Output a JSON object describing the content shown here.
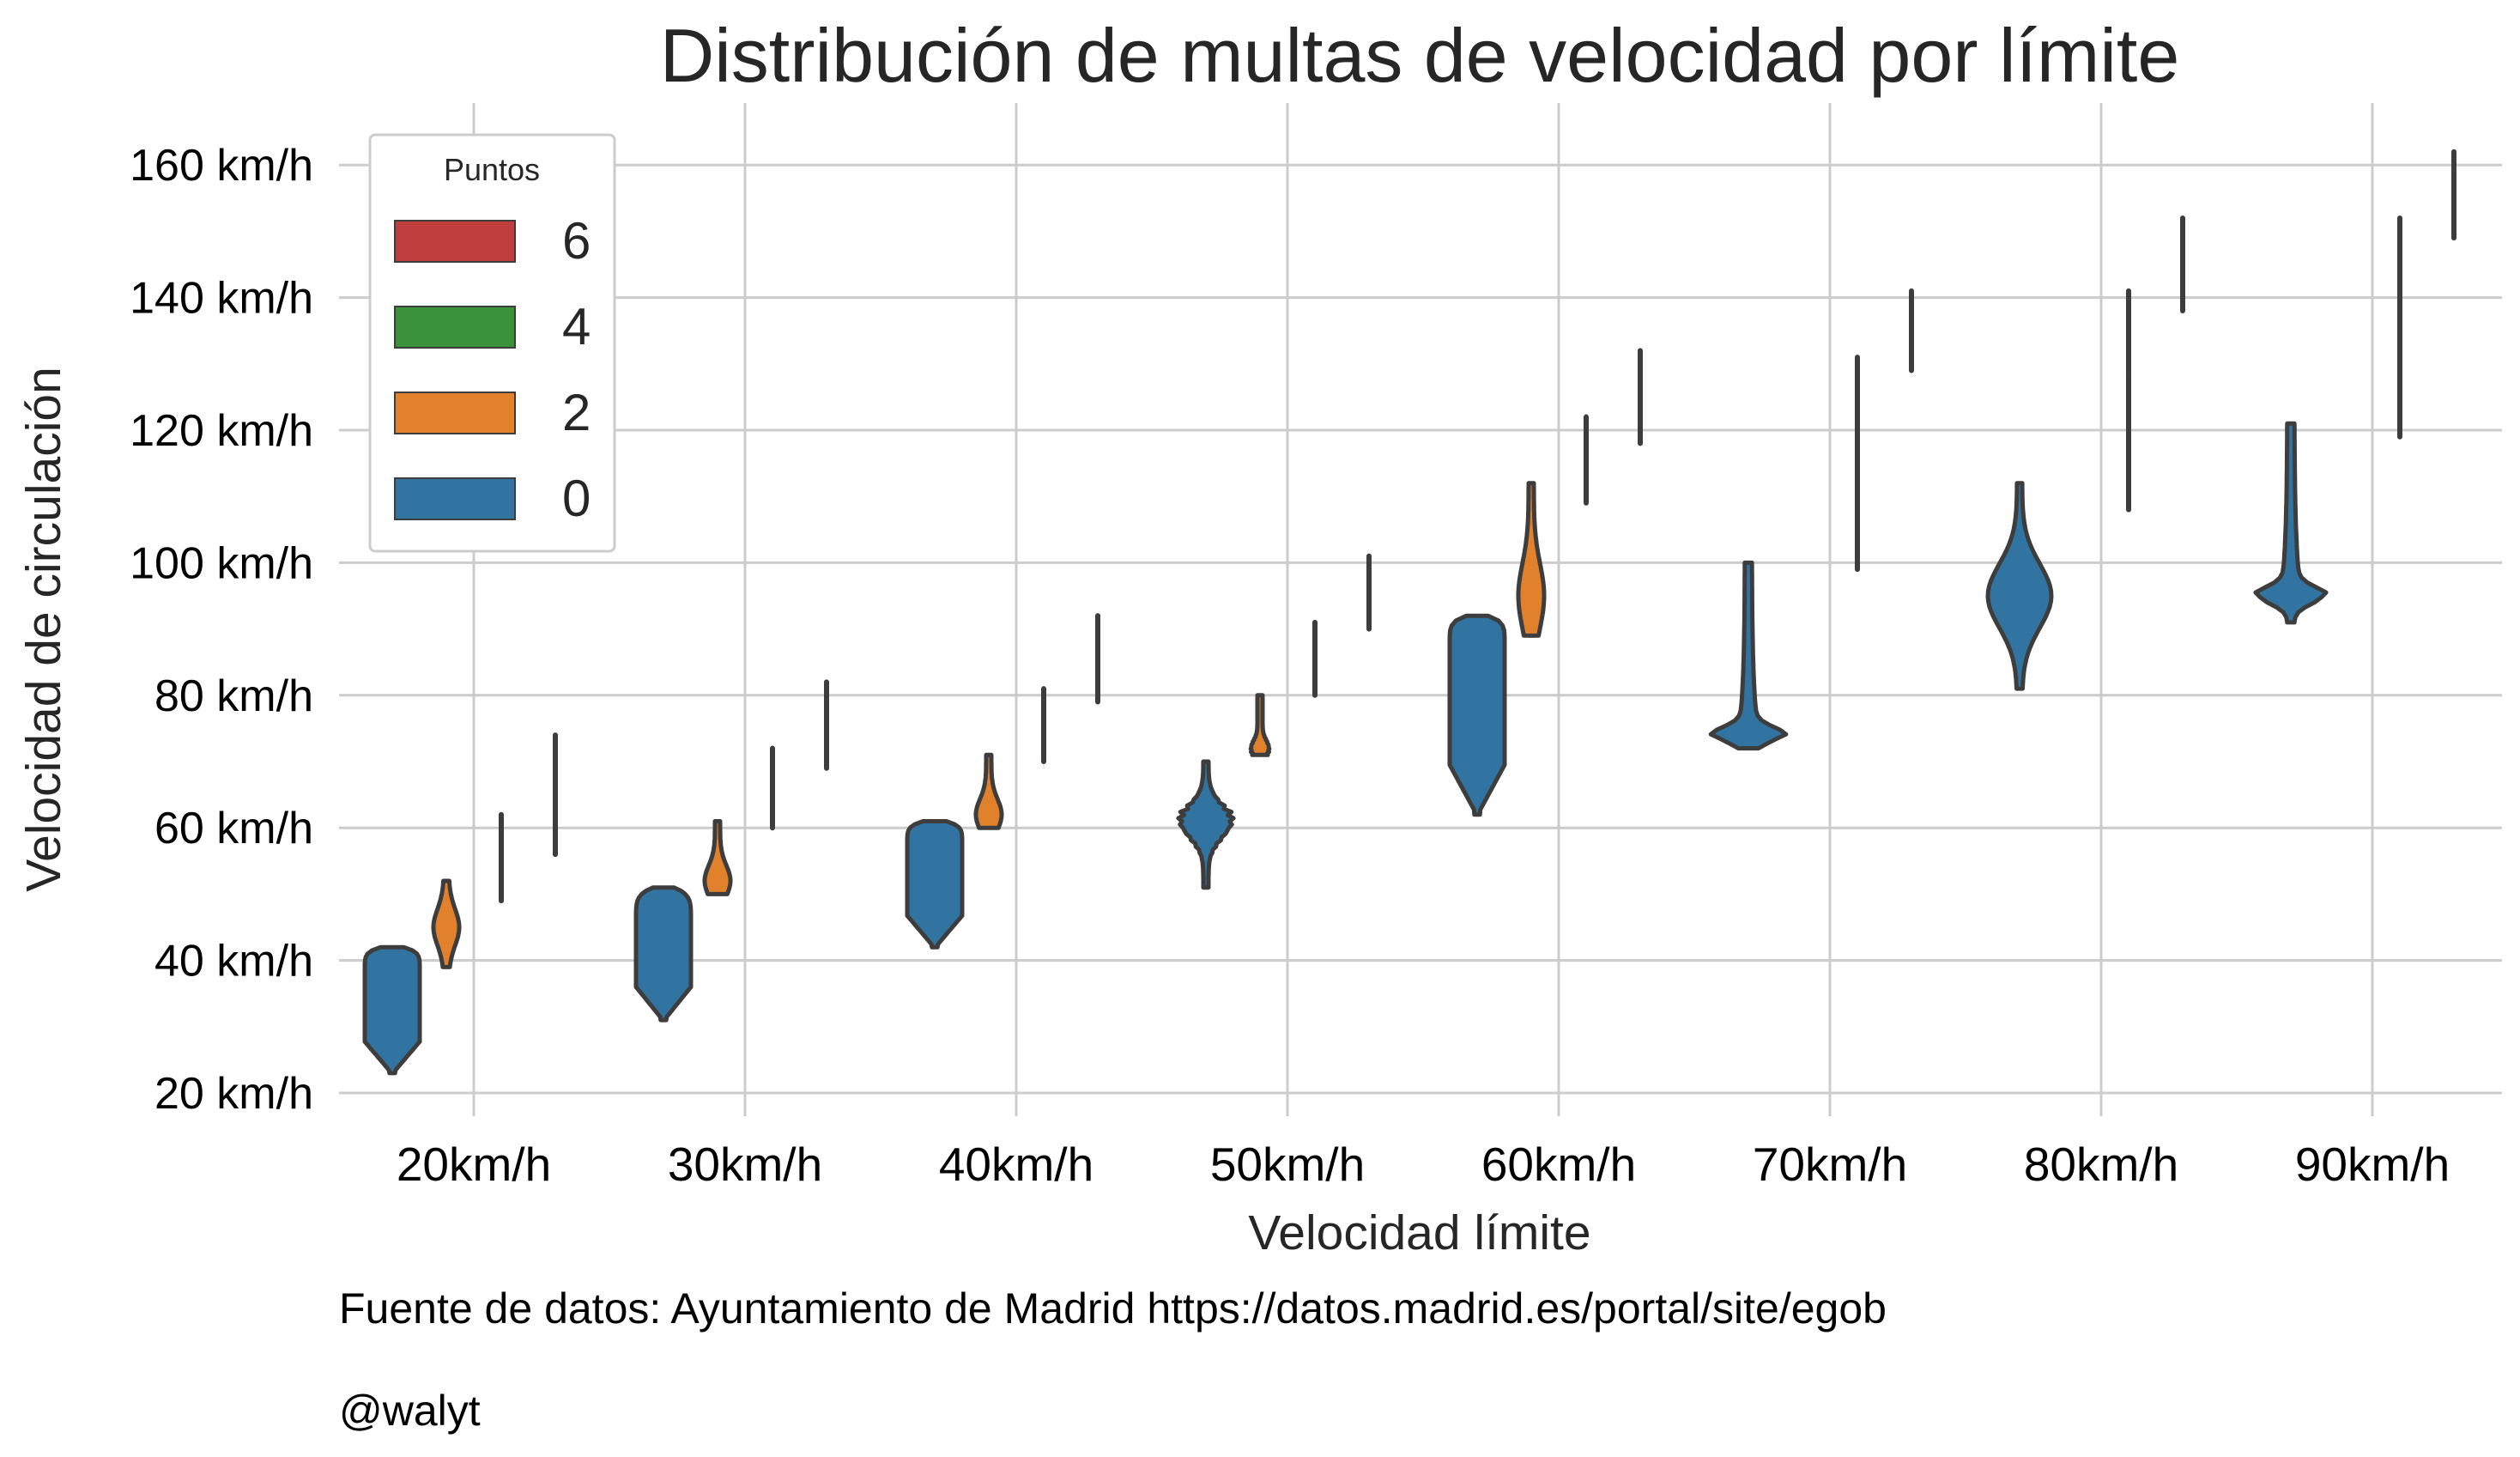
{
  "chart_data": {
    "type": "violin",
    "title": "Distribución de multas de velocidad por límite",
    "xlabel": "Velocidad límite",
    "ylabel": "Velocidad de circulación",
    "ylim": [
      17,
      170
    ],
    "yticks": [
      {
        "value": 20,
        "label": "20 km/h"
      },
      {
        "value": 40,
        "label": "40 km/h"
      },
      {
        "value": 60,
        "label": "60 km/h"
      },
      {
        "value": 80,
        "label": "80 km/h"
      },
      {
        "value": 100,
        "label": "100 km/h"
      },
      {
        "value": 120,
        "label": "120 km/h"
      },
      {
        "value": 140,
        "label": "140 km/h"
      },
      {
        "value": 160,
        "label": "160 km/h"
      }
    ],
    "categories": [
      "20km/h",
      "30km/h",
      "40km/h",
      "50km/h",
      "60km/h",
      "70km/h",
      "80km/h",
      "90km/h"
    ],
    "grid": true,
    "legend": {
      "title": "Puntos",
      "position": "top-left",
      "entries": [
        {
          "name": "6",
          "color": "#c03d3e"
        },
        {
          "name": "4",
          "color": "#3a923a"
        },
        {
          "name": "2",
          "color": "#e1812c"
        },
        {
          "name": "0",
          "color": "#3274a1"
        }
      ]
    },
    "series": [
      {
        "name": "0",
        "color": "#3274a1",
        "violins": [
          {
            "category": "20km/h",
            "min": 23,
            "max": 42,
            "shape": "block",
            "peak": 38
          },
          {
            "category": "30km/h",
            "min": 31,
            "max": 51,
            "shape": "block",
            "peak": 45
          },
          {
            "category": "40km/h",
            "min": 42,
            "max": 61,
            "shape": "block",
            "peak": 57
          },
          {
            "category": "50km/h",
            "min": 51,
            "max": 70,
            "shape": "stacked",
            "peak": 61
          },
          {
            "category": "60km/h",
            "min": 62,
            "max": 92,
            "shape": "block",
            "peak": 87
          },
          {
            "category": "70km/h",
            "min": 72,
            "max": 100,
            "shape": "spike",
            "peak": 74
          },
          {
            "category": "80km/h",
            "min": 81,
            "max": 112,
            "shape": "diamond",
            "peak": 95
          },
          {
            "category": "90km/h",
            "min": 91,
            "max": 121,
            "shape": "spike",
            "peak": 95
          }
        ]
      },
      {
        "name": "2",
        "color": "#e1812c",
        "violins": [
          {
            "category": "20km/h",
            "min": 39,
            "max": 52,
            "shape": "thin",
            "peak": 45
          },
          {
            "category": "30km/h",
            "min": 50,
            "max": 61,
            "shape": "thin",
            "peak": 52
          },
          {
            "category": "40km/h",
            "min": 60,
            "max": 71,
            "shape": "thin",
            "peak": 62
          },
          {
            "category": "50km/h",
            "min": 71,
            "max": 80,
            "shape": "stacked",
            "peak": 72
          },
          {
            "category": "60km/h",
            "min": 89,
            "max": 112,
            "shape": "thin",
            "peak": 95
          }
        ]
      },
      {
        "name": "4",
        "color": "#3a923a",
        "violins": [
          {
            "category": "20km/h",
            "min": 49,
            "max": 62
          },
          {
            "category": "30km/h",
            "min": 60,
            "max": 72
          },
          {
            "category": "40km/h",
            "min": 70,
            "max": 81
          },
          {
            "category": "50km/h",
            "min": 80,
            "max": 91
          },
          {
            "category": "60km/h",
            "min": 109,
            "max": 122
          },
          {
            "category": "70km/h",
            "min": 99,
            "max": 122
          },
          {
            "category": "80km/h",
            "min": 108,
            "max": 132
          },
          {
            "category": "90km/h",
            "min": 119,
            "max": 142
          }
        ]
      },
      {
        "name": "6",
        "color": "#c03d3e",
        "violins": [
          {
            "category": "20km/h",
            "min": 56,
            "max": 74
          },
          {
            "category": "30km/h",
            "min": 69,
            "max": 82
          },
          {
            "category": "40km/h",
            "min": 79,
            "max": 92
          },
          {
            "category": "50km/h",
            "min": 90,
            "max": 101
          },
          {
            "category": "60km/h",
            "min": 118,
            "max": 132
          },
          {
            "category": "70km/h",
            "min": 129,
            "max": 141
          },
          {
            "category": "80km/h",
            "min": 138,
            "max": 152
          },
          {
            "category": "90km/h",
            "min": 149,
            "max": 162
          }
        ]
      },
      {
        "name": "4",
        "color": "#3a923a",
        "violins": [
          {
            "category": "70km/h",
            "min": 119,
            "max": 131
          },
          {
            "category": "80km/h",
            "min": 129,
            "max": 141
          },
          {
            "category": "90km/h",
            "min": 139,
            "max": 152
          }
        ]
      }
    ]
  },
  "footer": {
    "source": "Fuente de datos: Ayuntamiento de Madrid https://datos.madrid.es/portal/site/egob",
    "author": "@walyt"
  }
}
